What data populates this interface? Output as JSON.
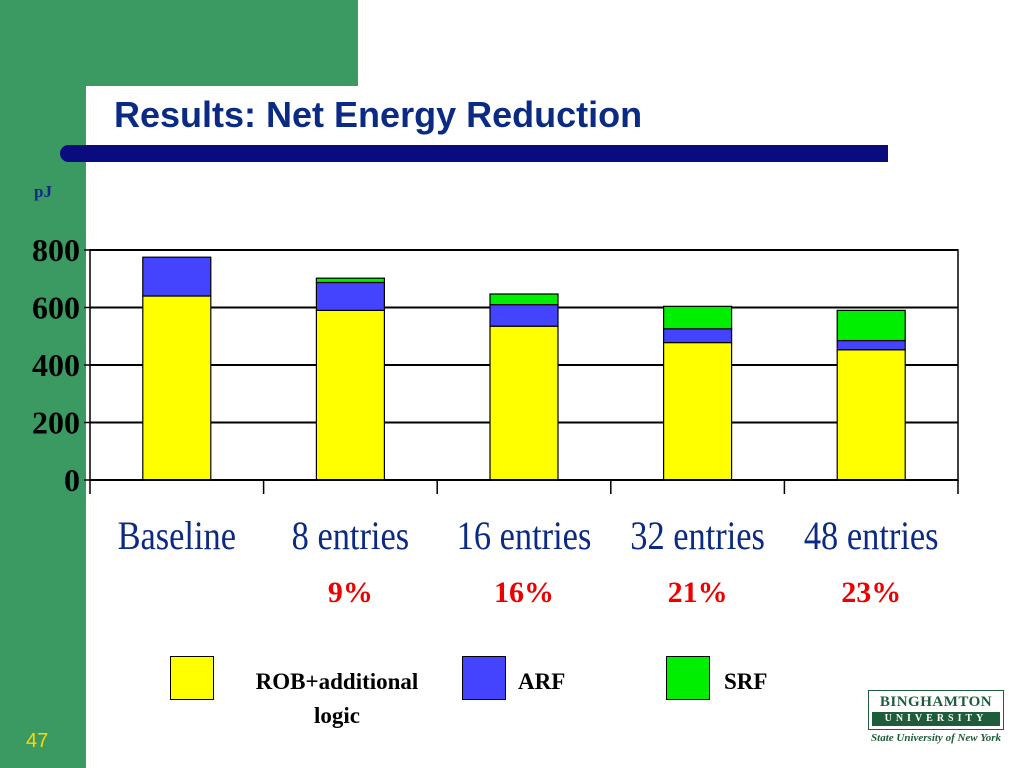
{
  "slide": {
    "title": "Results: Net Energy Reduction",
    "unit_label": "pJ",
    "slide_number": "47"
  },
  "chart_data": {
    "type": "bar",
    "stacked": true,
    "categories": [
      "Baseline",
      "8 entries",
      "16 entries",
      "32 entries",
      "48 entries"
    ],
    "series": [
      {
        "name": "ROB+additional logic",
        "color": "#ffff00",
        "values": [
          640,
          590,
          535,
          478,
          453
        ]
      },
      {
        "name": "ARF",
        "color": "#4444ff",
        "values": [
          135,
          97,
          75,
          48,
          32
        ]
      },
      {
        "name": "SRF",
        "color": "#00ee00",
        "values": [
          0,
          15,
          37,
          78,
          105
        ]
      }
    ],
    "ylim": [
      0,
      800
    ],
    "yticks": [
      "0",
      "200",
      "400",
      "600",
      "800"
    ],
    "grid": true,
    "percent_labels": [
      "",
      "9%",
      "16%",
      "21%",
      "23%"
    ],
    "percent_color": "#ee0000"
  },
  "legend": {
    "items": [
      {
        "label": "ROB+additional logic",
        "color": "#ffff00"
      },
      {
        "label": "ARF",
        "color": "#4444ff"
      },
      {
        "label": "SRF",
        "color": "#00ee00"
      }
    ]
  },
  "logo": {
    "name_top": "BINGHAMTON",
    "name_bottom": "UNIVERSITY",
    "subtitle": "State University of New York",
    "color": "#1e5c3a"
  }
}
